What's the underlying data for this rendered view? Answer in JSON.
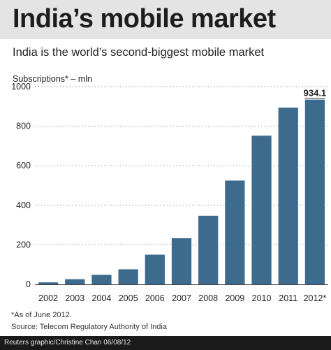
{
  "header": {
    "title": "India’s mobile market",
    "subtitle": "India is the world’s second-biggest mobile market"
  },
  "chart_data": {
    "type": "bar",
    "ylabel": "Subscriptions* – mln",
    "categories": [
      "2002",
      "2003",
      "2004",
      "2005",
      "2006",
      "2007",
      "2008",
      "2009",
      "2010",
      "2011",
      "2012*"
    ],
    "values": [
      10,
      26,
      48,
      76,
      150,
      233,
      347,
      525,
      752,
      894,
      934.1
    ],
    "value_labels": [
      "",
      "",
      "",
      "",
      "",
      "",
      "",
      "",
      "",
      "",
      "934.1"
    ],
    "ylim": [
      0,
      1000
    ],
    "yticks": [
      0,
      200,
      400,
      600,
      800,
      1000
    ],
    "grid": "dotted horizontal",
    "bar_color": "#3d6b8e"
  },
  "notes": {
    "footnote": "*As of June 2012.",
    "source": "Source: Telecom Regulatory Authority of India"
  },
  "footer": {
    "credit": "Reuters graphic/Christine Chan   06/08/12"
  }
}
